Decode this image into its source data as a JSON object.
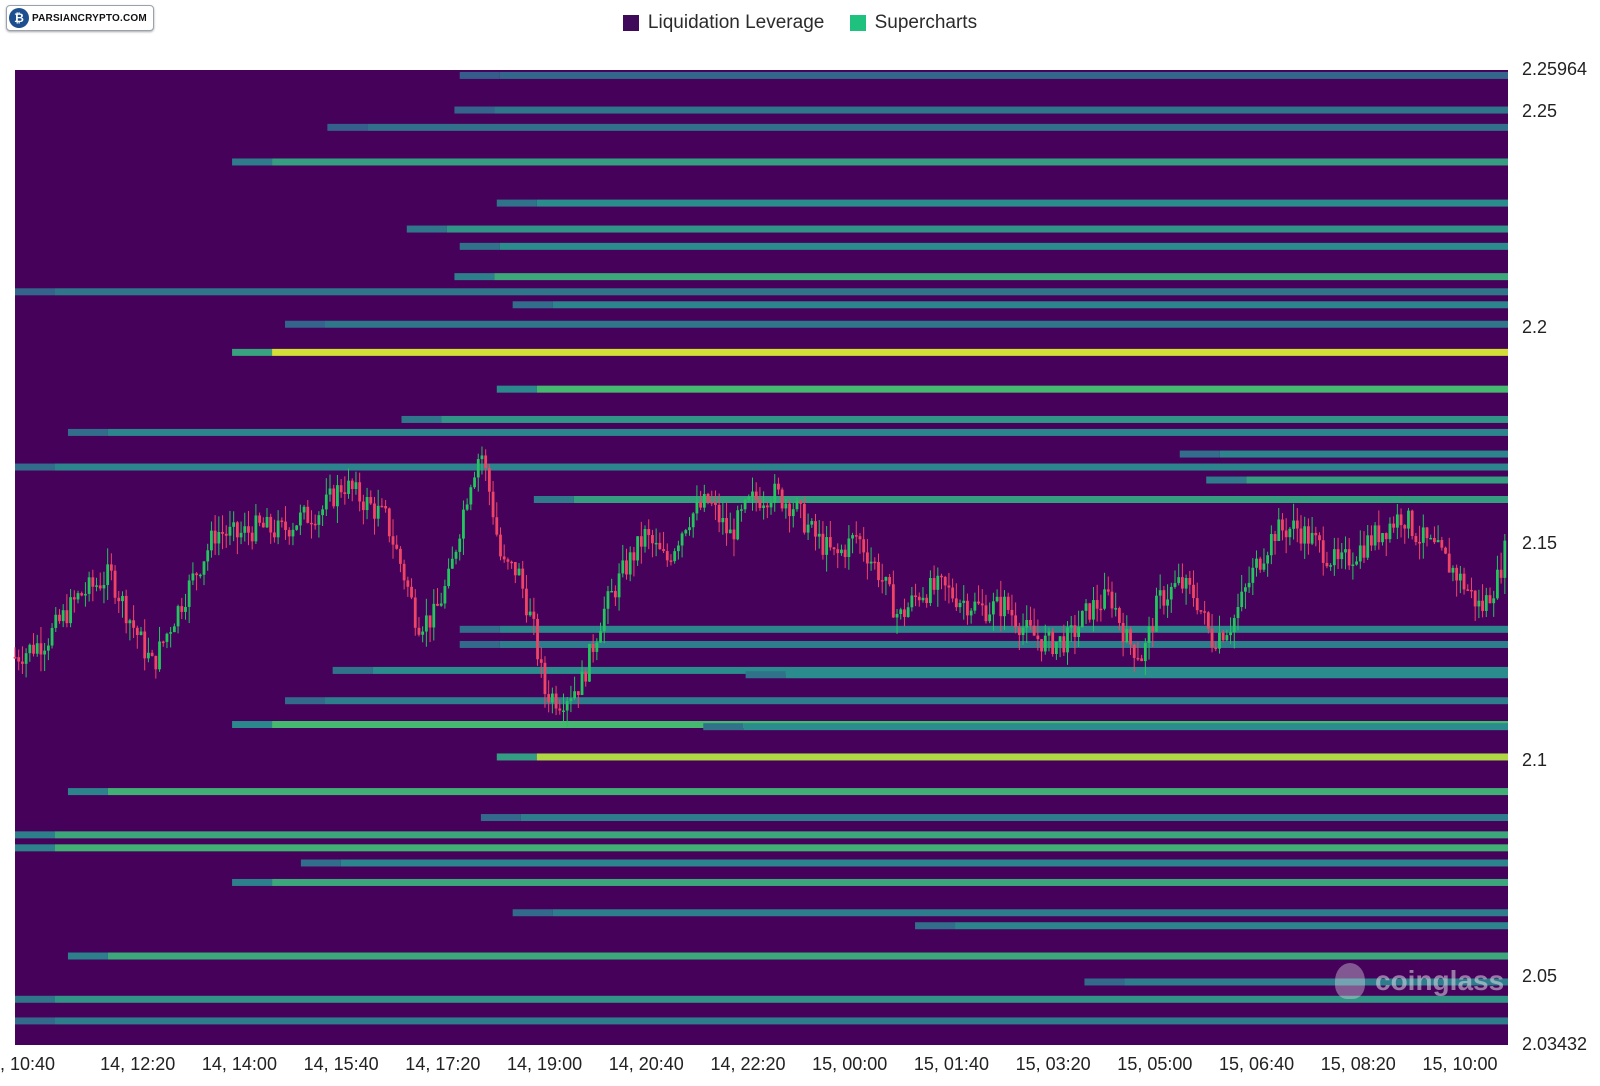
{
  "header": {
    "logo_text": "PARSIANCRYPTO.COM"
  },
  "legend": [
    {
      "label": "Liquidation Leverage",
      "color": "#3e0a59"
    },
    {
      "label": "Supercharts",
      "color": "#1fc17e"
    }
  ],
  "watermark": "coinglass",
  "colors": {
    "background": "#46015a",
    "candle_up": "#22c55e",
    "candle_down": "#ef4466",
    "heat_low": "#3b4a8a",
    "heat_mid": "#2a8c8c",
    "heat_high": "#4cc26a",
    "heat_max": "#f2e62a"
  },
  "chart_data": {
    "type": "heatmap",
    "title": "",
    "xlabel": "",
    "ylabel": "",
    "ylim": [
      2.03432,
      2.25964
    ],
    "y_ticks": [
      "2.25964",
      "2.25",
      "2.2",
      "2.15",
      "2.1",
      "2.05",
      "2.03432"
    ],
    "y_tick_values": [
      2.25964,
      2.25,
      2.2,
      2.15,
      2.1,
      2.05,
      2.03432
    ],
    "x_ticks": [
      ", 10:40",
      "14, 12:20",
      "14, 14:00",
      "14, 15:40",
      "14, 17:20",
      "14, 19:00",
      "14, 20:40",
      "14, 22:20",
      "15, 00:00",
      "15, 01:40",
      "15, 03:20",
      "15, 05:00",
      "15, 06:40",
      "15, 08:20",
      "15, 10:00"
    ],
    "x_range_minutes": [
      0,
      1410
    ],
    "liquidation_bands": [
      {
        "price": 2.2585,
        "start": 420,
        "level": 0.2
      },
      {
        "price": 2.2505,
        "start": 415,
        "level": 0.3
      },
      {
        "price": 2.2465,
        "start": 295,
        "level": 0.25
      },
      {
        "price": 2.2385,
        "start": 205,
        "level": 0.55
      },
      {
        "price": 2.229,
        "start": 455,
        "level": 0.45
      },
      {
        "price": 2.223,
        "start": 370,
        "level": 0.5
      },
      {
        "price": 2.219,
        "start": 420,
        "level": 0.45
      },
      {
        "price": 2.212,
        "start": 415,
        "level": 0.6
      },
      {
        "price": 2.2085,
        "start": 0,
        "level": 0.3
      },
      {
        "price": 2.2055,
        "start": 470,
        "level": 0.4
      },
      {
        "price": 2.201,
        "start": 255,
        "level": 0.3
      },
      {
        "price": 2.1945,
        "start": 205,
        "level": 0.95
      },
      {
        "price": 2.186,
        "start": 455,
        "level": 0.7
      },
      {
        "price": 2.179,
        "start": 365,
        "level": 0.5
      },
      {
        "price": 2.176,
        "start": 50,
        "level": 0.4
      },
      {
        "price": 2.171,
        "start": 1100,
        "level": 0.4
      },
      {
        "price": 2.168,
        "start": 0,
        "level": 0.4
      },
      {
        "price": 2.165,
        "start": 1125,
        "level": 0.55
      },
      {
        "price": 2.1605,
        "start": 490,
        "level": 0.55
      },
      {
        "price": 2.1305,
        "start": 420,
        "level": 0.4
      },
      {
        "price": 2.127,
        "start": 420,
        "level": 0.35
      },
      {
        "price": 2.121,
        "start": 300,
        "level": 0.45
      },
      {
        "price": 2.12,
        "start": 690,
        "level": 0.45
      },
      {
        "price": 2.114,
        "start": 255,
        "level": 0.35
      },
      {
        "price": 2.1085,
        "start": 205,
        "level": 0.7
      },
      {
        "price": 2.108,
        "start": 650,
        "level": 0.45
      },
      {
        "price": 2.101,
        "start": 455,
        "level": 0.9
      },
      {
        "price": 2.093,
        "start": 50,
        "level": 0.65
      },
      {
        "price": 2.087,
        "start": 440,
        "level": 0.35
      },
      {
        "price": 2.083,
        "start": 0,
        "level": 0.6
      },
      {
        "price": 2.08,
        "start": 0,
        "level": 0.65
      },
      {
        "price": 2.0765,
        "start": 270,
        "level": 0.4
      },
      {
        "price": 2.072,
        "start": 205,
        "level": 0.6
      },
      {
        "price": 2.065,
        "start": 470,
        "level": 0.35
      },
      {
        "price": 2.062,
        "start": 850,
        "level": 0.4
      },
      {
        "price": 2.055,
        "start": 50,
        "level": 0.6
      },
      {
        "price": 2.049,
        "start": 1010,
        "level": 0.35
      },
      {
        "price": 2.045,
        "start": 0,
        "level": 0.5
      },
      {
        "price": 2.04,
        "start": 0,
        "level": 0.35
      }
    ],
    "price_path": [
      [
        0,
        2.124
      ],
      [
        30,
        2.128
      ],
      [
        60,
        2.138
      ],
      [
        90,
        2.143
      ],
      [
        110,
        2.132
      ],
      [
        130,
        2.122
      ],
      [
        150,
        2.133
      ],
      [
        170,
        2.143
      ],
      [
        190,
        2.153
      ],
      [
        210,
        2.152
      ],
      [
        230,
        2.154
      ],
      [
        250,
        2.153
      ],
      [
        270,
        2.156
      ],
      [
        290,
        2.158
      ],
      [
        310,
        2.164
      ],
      [
        330,
        2.16
      ],
      [
        350,
        2.156
      ],
      [
        365,
        2.145
      ],
      [
        380,
        2.132
      ],
      [
        395,
        2.133
      ],
      [
        410,
        2.142
      ],
      [
        420,
        2.154
      ],
      [
        430,
        2.165
      ],
      [
        440,
        2.172
      ],
      [
        450,
        2.16
      ],
      [
        460,
        2.145
      ],
      [
        475,
        2.144
      ],
      [
        490,
        2.13
      ],
      [
        500,
        2.116
      ],
      [
        515,
        2.114
      ],
      [
        535,
        2.118
      ],
      [
        555,
        2.134
      ],
      [
        575,
        2.144
      ],
      [
        595,
        2.152
      ],
      [
        615,
        2.146
      ],
      [
        635,
        2.156
      ],
      [
        655,
        2.16
      ],
      [
        675,
        2.152
      ],
      [
        695,
        2.16
      ],
      [
        715,
        2.162
      ],
      [
        735,
        2.159
      ],
      [
        755,
        2.152
      ],
      [
        775,
        2.147
      ],
      [
        795,
        2.152
      ],
      [
        815,
        2.144
      ],
      [
        835,
        2.133
      ],
      [
        855,
        2.139
      ],
      [
        875,
        2.14
      ],
      [
        895,
        2.137
      ],
      [
        915,
        2.135
      ],
      [
        935,
        2.136
      ],
      [
        955,
        2.13
      ],
      [
        975,
        2.127
      ],
      [
        995,
        2.128
      ],
      [
        1015,
        2.135
      ],
      [
        1035,
        2.138
      ],
      [
        1050,
        2.128
      ],
      [
        1065,
        2.124
      ],
      [
        1080,
        2.137
      ],
      [
        1100,
        2.141
      ],
      [
        1115,
        2.138
      ],
      [
        1130,
        2.128
      ],
      [
        1150,
        2.132
      ],
      [
        1170,
        2.144
      ],
      [
        1190,
        2.153
      ],
      [
        1210,
        2.154
      ],
      [
        1230,
        2.15
      ],
      [
        1250,
        2.145
      ],
      [
        1270,
        2.149
      ],
      [
        1290,
        2.153
      ],
      [
        1310,
        2.157
      ],
      [
        1325,
        2.152
      ],
      [
        1345,
        2.148
      ],
      [
        1365,
        2.142
      ],
      [
        1385,
        2.135
      ],
      [
        1400,
        2.142
      ],
      [
        1410,
        2.151
      ]
    ]
  }
}
